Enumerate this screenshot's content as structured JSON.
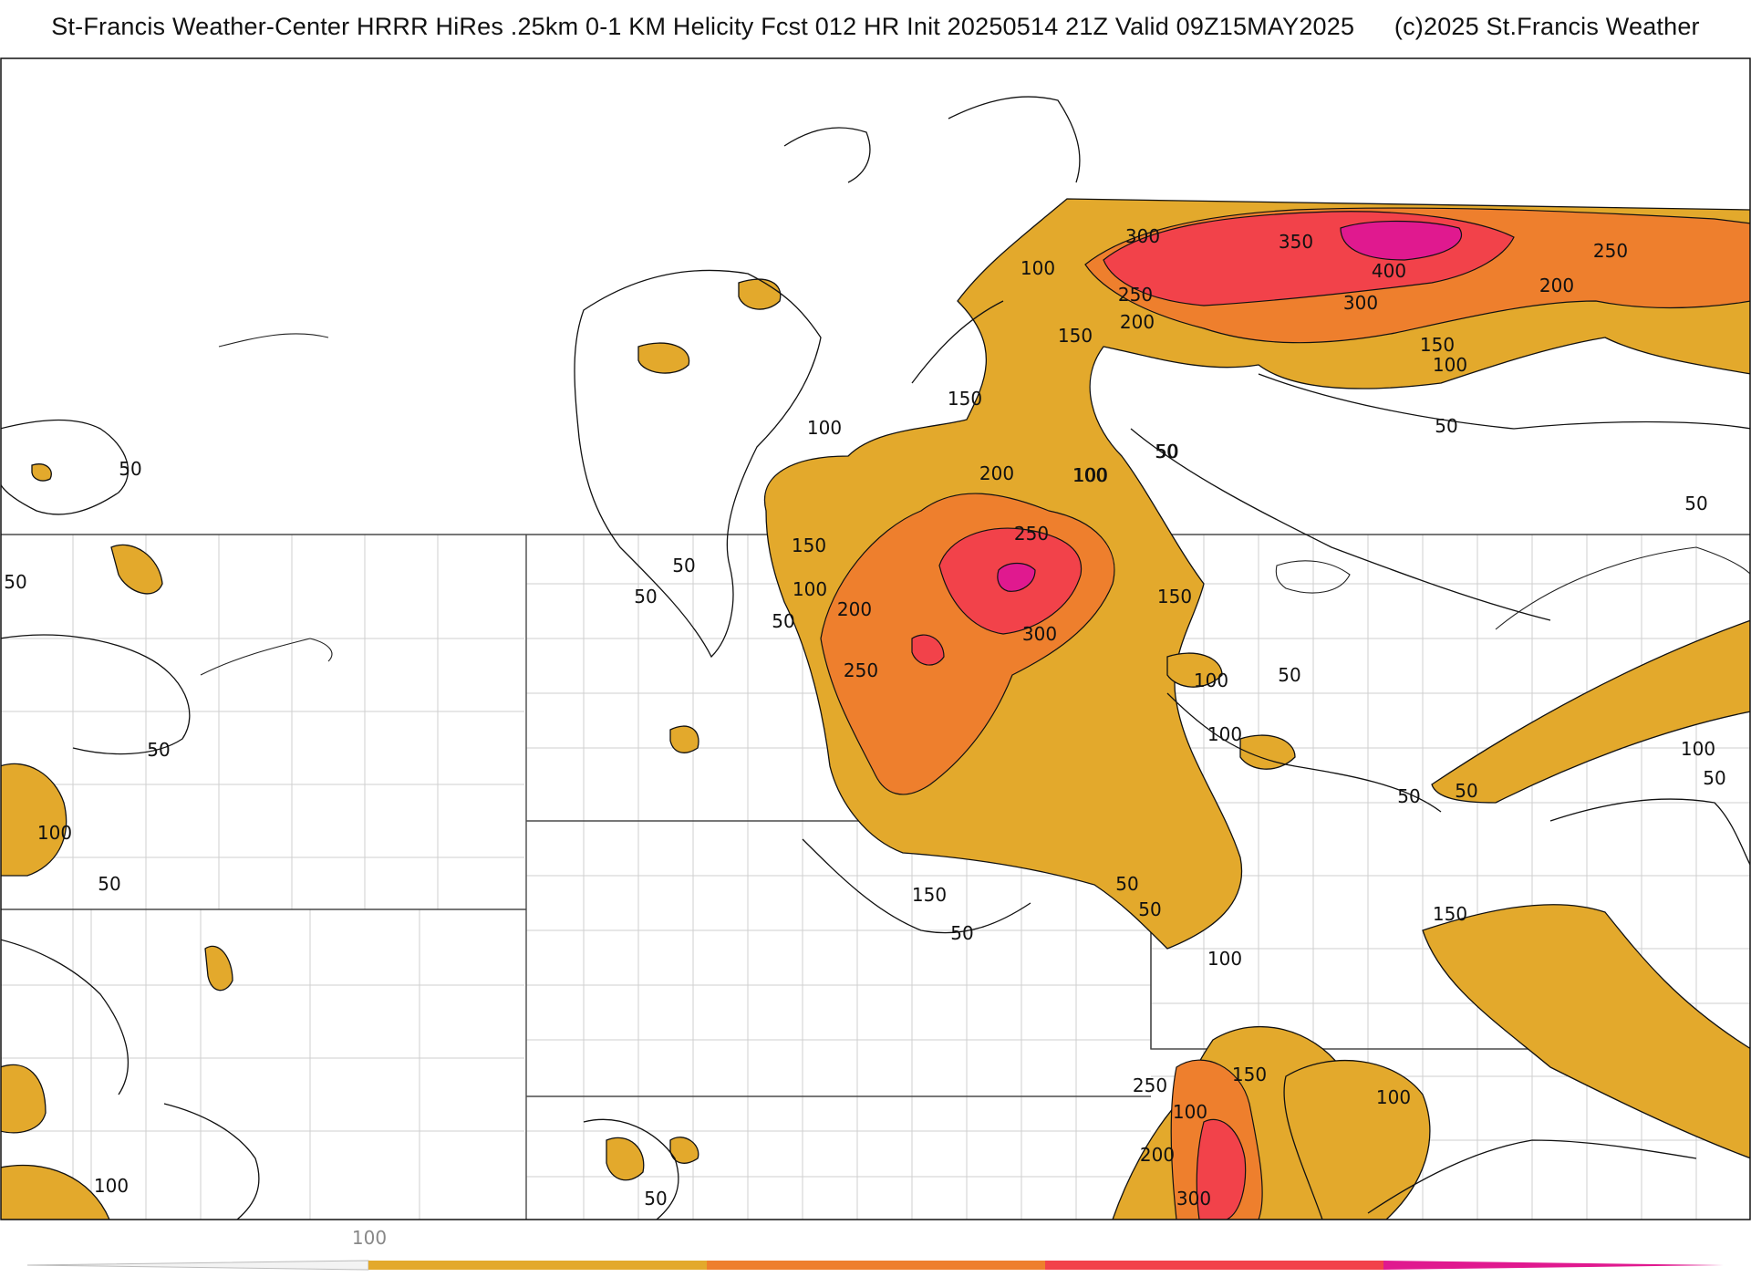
{
  "header": {
    "title": "St-Francis Weather-Center HRRR HiRes .25km 0-1 KM Helicity Fcst 012 HR Init 20250514 21Z  Valid 09Z15MAY2025",
    "copyright": "(c)2025 St.Francis Weather"
  },
  "map": {
    "field": "0-1 KM Helicity",
    "fill_colors": {
      "100-150": "#e3a92c",
      "200-250": "#ee7f2d",
      "300-350": "#f2424a",
      "400+": "#e0198f"
    },
    "contour_color": "#111111",
    "state_border_color": "#555555",
    "county_border_color": "#c8c8c8",
    "contour_labels": [
      "300",
      "350",
      "400",
      "250",
      "200",
      "150",
      "100",
      "50",
      "50",
      "100",
      "150",
      "200",
      "250",
      "300",
      "50",
      "100",
      "150",
      "200",
      "250",
      "300",
      "50",
      "100",
      "150",
      "200",
      "250",
      "100",
      "50",
      "50",
      "100",
      "50",
      "100",
      "150",
      "50",
      "50",
      "100",
      "150",
      "50",
      "50",
      "100",
      "50",
      "50",
      "50",
      "100",
      "50",
      "50",
      "100",
      "50",
      "50",
      "100",
      "150",
      "250",
      "200",
      "300",
      "100",
      "150",
      "100",
      "50"
    ]
  },
  "colorbar": {
    "ticks": [
      "100"
    ]
  }
}
